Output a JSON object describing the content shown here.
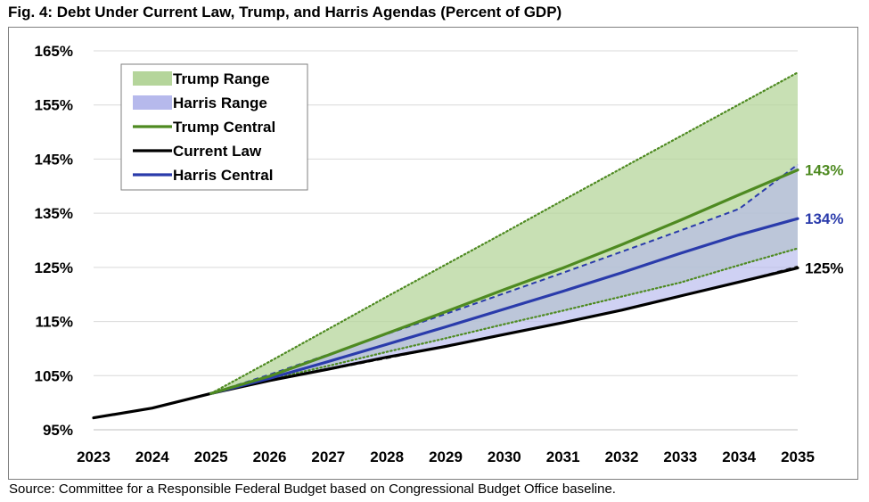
{
  "figure": {
    "title": "Fig. 4: Debt Under Current Law, Trump, and Harris Agendas (Percent of GDP)",
    "source": "Source: Committee for a Responsible Federal Budget based on Congressional Budget Office baseline."
  },
  "colors": {
    "trump": "#4e8a21",
    "trump_fill": "#b5d59b",
    "harris": "#2a3bab",
    "harris_fill": "#b6b9ec",
    "current": "#000000",
    "grid": "#d9d9d9"
  },
  "chart_data": {
    "type": "line",
    "title": "Fig. 4: Debt Under Current Law, Trump, and Harris Agendas (Percent of GDP)",
    "xlabel": "",
    "ylabel": "",
    "x": [
      2023,
      2024,
      2025,
      2026,
      2027,
      2028,
      2029,
      2030,
      2031,
      2032,
      2033,
      2034,
      2035
    ],
    "ylim": [
      95,
      165
    ],
    "yticks": [
      95,
      105,
      115,
      125,
      135,
      145,
      155,
      165
    ],
    "ytick_labels": [
      "95%",
      "105%",
      "115%",
      "125%",
      "135%",
      "145%",
      "155%",
      "165%"
    ],
    "grid": "horizontal",
    "legend_position": "top-left",
    "series": [
      {
        "name": "Current Law",
        "type": "line",
        "color": "#000000",
        "x": [
          2023,
          2024,
          2025,
          2026,
          2027,
          2028,
          2029,
          2030,
          2031,
          2032,
          2033,
          2034,
          2035
        ],
        "values": [
          97.2,
          99.0,
          101.7,
          104.1,
          106.2,
          108.4,
          110.4,
          112.6,
          114.8,
          117.1,
          119.7,
          122.3,
          124.9
        ]
      },
      {
        "name": "Trump Central",
        "type": "line",
        "color": "#4e8a21",
        "x": [
          2025,
          2026,
          2027,
          2028,
          2029,
          2030,
          2031,
          2032,
          2033,
          2034,
          2035
        ],
        "values": [
          101.7,
          104.9,
          108.8,
          112.8,
          116.8,
          120.9,
          124.9,
          129.2,
          133.7,
          138.4,
          143.0
        ]
      },
      {
        "name": "Harris Central",
        "type": "line",
        "color": "#2a3bab",
        "x": [
          2025,
          2026,
          2027,
          2028,
          2029,
          2030,
          2031,
          2032,
          2033,
          2034,
          2035
        ],
        "values": [
          101.7,
          104.5,
          107.6,
          110.8,
          114.0,
          117.3,
          120.6,
          124.0,
          127.6,
          131.0,
          134.0
        ]
      },
      {
        "name": "Trump Range",
        "type": "band",
        "color": "#b5d59b",
        "x": [
          2025,
          2026,
          2027,
          2028,
          2029,
          2030,
          2031,
          2032,
          2033,
          2034,
          2035
        ],
        "upper": [
          101.7,
          107.6,
          113.6,
          119.6,
          125.5,
          131.4,
          137.4,
          143.3,
          149.2,
          155.1,
          161.0
        ],
        "lower": [
          101.7,
          104.3,
          106.8,
          109.4,
          111.9,
          114.5,
          117.0,
          119.6,
          122.2,
          125.4,
          128.5
        ]
      },
      {
        "name": "Harris Range",
        "type": "band",
        "color": "#b6b9ec",
        "x": [
          2025,
          2026,
          2027,
          2028,
          2029,
          2030,
          2031,
          2032,
          2033,
          2034,
          2035
        ],
        "upper": [
          101.7,
          105.2,
          108.9,
          112.7,
          116.4,
          120.2,
          124.0,
          127.9,
          131.8,
          135.8,
          144.0
        ],
        "lower": [
          101.7,
          104.0,
          106.1,
          108.2,
          110.4,
          112.6,
          114.8,
          117.1,
          119.7,
          122.3,
          125.2
        ]
      }
    ],
    "end_labels": [
      {
        "series": "Trump Central",
        "text": "143%",
        "color": "#4e8a21"
      },
      {
        "series": "Harris Central",
        "text": "134%",
        "color": "#2a3bab"
      },
      {
        "series": "Current Law",
        "text": "125%",
        "color": "#000000"
      }
    ]
  },
  "legend": {
    "items": [
      {
        "label": "Trump Range",
        "kind": "fill",
        "color": "#b5d59b"
      },
      {
        "label": "Harris Range",
        "kind": "fill",
        "color": "#b6b9ec"
      },
      {
        "label": "Trump Central",
        "kind": "line",
        "color": "#4e8a21"
      },
      {
        "label": "Current Law",
        "kind": "line",
        "color": "#000000"
      },
      {
        "label": "Harris Central",
        "kind": "line",
        "color": "#2a3bab"
      }
    ]
  }
}
